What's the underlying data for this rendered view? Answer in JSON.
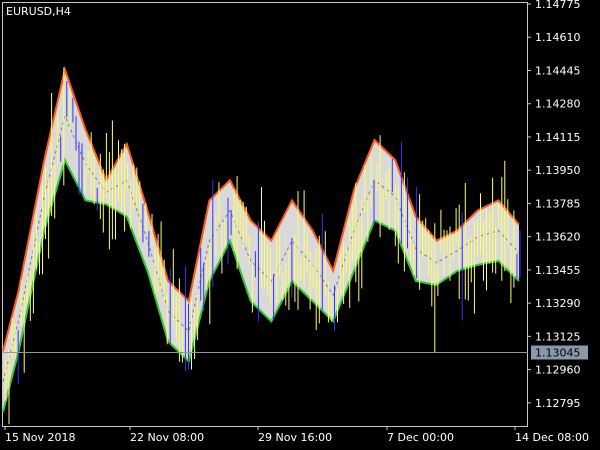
{
  "window": {
    "symbol_label": "EURUSD,H4"
  },
  "colors": {
    "background": "#000000",
    "frame": "#c8c8c8",
    "bar": "#ffff66",
    "bar_blue": "#3333ff",
    "band_fill": "#d9d9d9",
    "band_upper_down": "#ff5a1a",
    "band_lower_up": "#33cc33",
    "midline": "#7777aa",
    "current_price_line": "#8899aa",
    "current_price_tag_bg": "#8899aa"
  },
  "chart_data": {
    "type": "line",
    "title": "",
    "ylim": [
      1.1268,
      1.1478
    ],
    "y_ticks": [
      "1.14775",
      "1.14610",
      "1.14445",
      "1.14280",
      "1.14115",
      "1.13950",
      "1.13785",
      "1.13620",
      "1.13455",
      "1.13290",
      "1.13125",
      "1.12960",
      "1.12795"
    ],
    "x_ticks": [
      "15 Nov 2018",
      "22 Nov 08:00",
      "29 Nov 16:00",
      "7 Dec 00:00",
      "14 Dec 08:00"
    ],
    "current_price": "1.13045",
    "series": [
      {
        "x": [
          0,
          0.03,
          0.08,
          0.12,
          0.16,
          0.2,
          0.24,
          0.28,
          0.32,
          0.36,
          0.4,
          0.44,
          0.48,
          0.52,
          0.56,
          0.6,
          0.64,
          0.68,
          0.72,
          0.76,
          0.8,
          0.84,
          0.88,
          0.92,
          0.96,
          1.0
        ],
        "upper": [
          1.1305,
          1.1335,
          1.14,
          1.1445,
          1.1415,
          1.139,
          1.1408,
          1.1375,
          1.134,
          1.133,
          1.138,
          1.139,
          1.137,
          1.136,
          1.138,
          1.1365,
          1.1345,
          1.1385,
          1.141,
          1.14,
          1.1372,
          1.136,
          1.1365,
          1.1375,
          1.138,
          1.1368
        ],
        "lower": [
          1.1275,
          1.1305,
          1.1365,
          1.14,
          1.138,
          1.1378,
          1.1372,
          1.1345,
          1.131,
          1.13,
          1.134,
          1.136,
          1.133,
          1.132,
          1.134,
          1.133,
          1.132,
          1.1345,
          1.137,
          1.1365,
          1.134,
          1.1338,
          1.1345,
          1.1348,
          1.135,
          1.134
        ],
        "mid": [
          1.129,
          1.132,
          1.1382,
          1.1422,
          1.1398,
          1.1384,
          1.139,
          1.136,
          1.1325,
          1.1315,
          1.136,
          1.1375,
          1.135,
          1.134,
          1.136,
          1.1348,
          1.1333,
          1.1365,
          1.139,
          1.1382,
          1.1356,
          1.1349,
          1.1355,
          1.1362,
          1.1365,
          1.1354
        ]
      }
    ]
  }
}
